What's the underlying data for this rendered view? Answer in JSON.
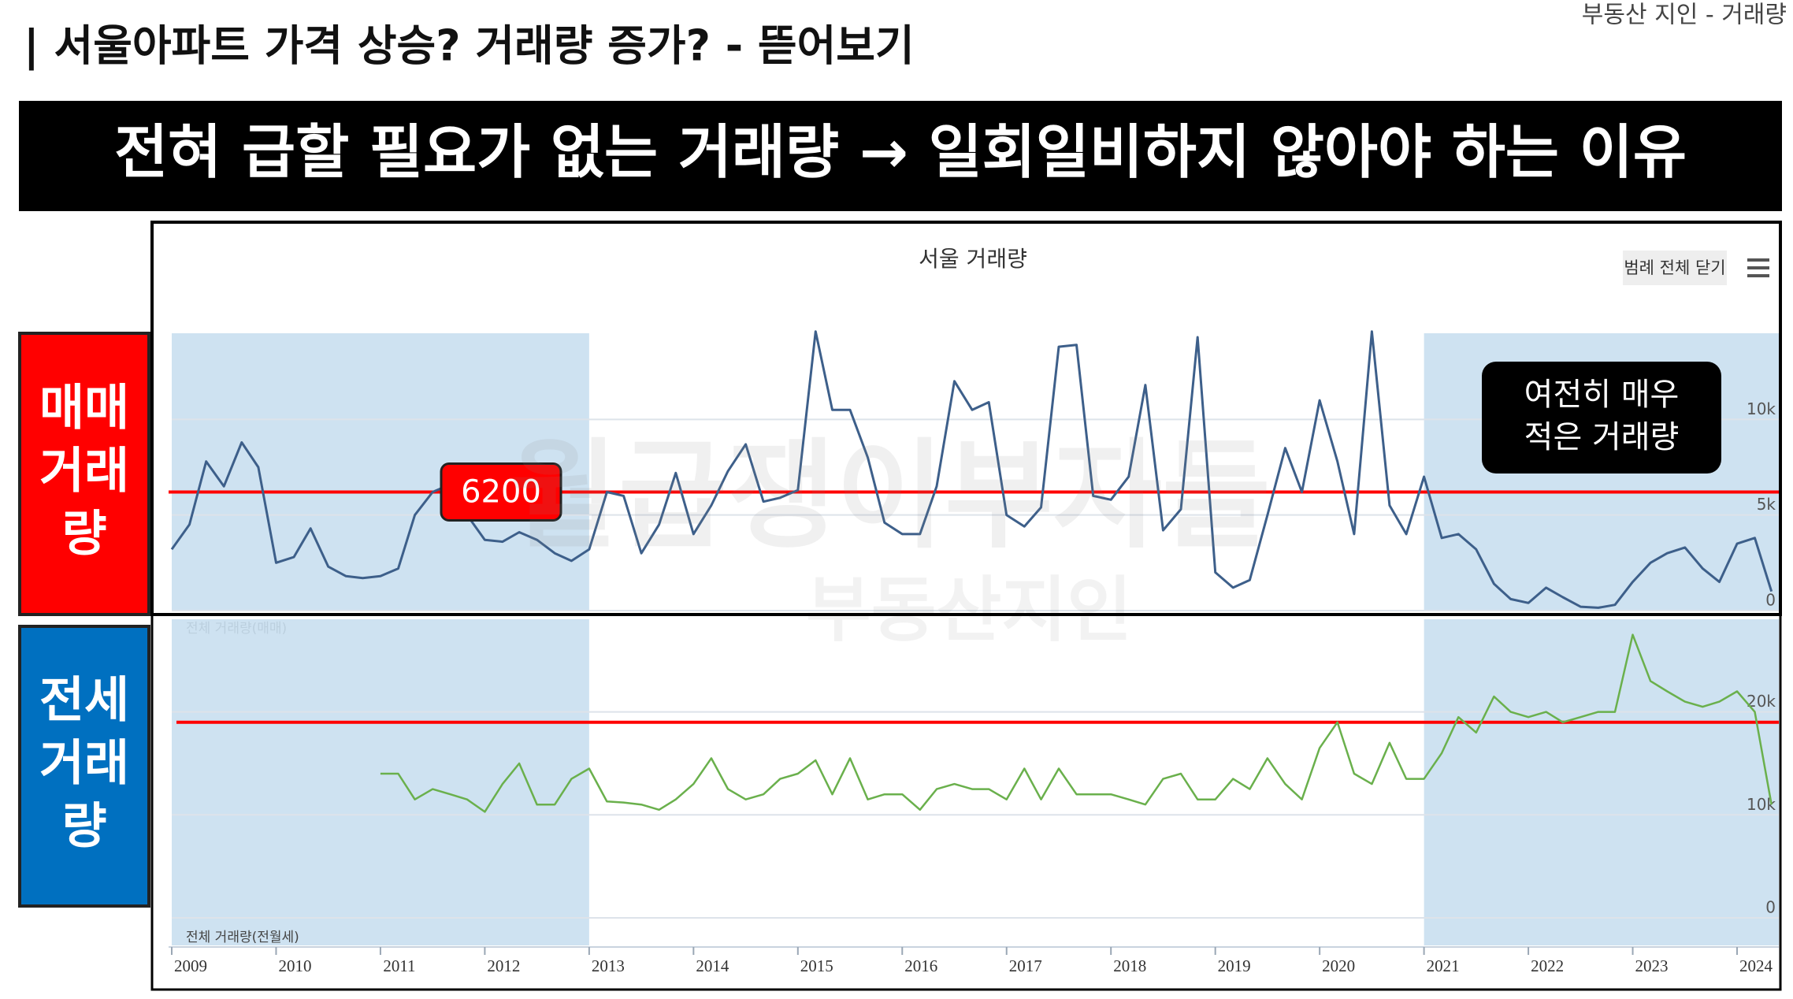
{
  "header": {
    "title": "| 서울아파트 가격 상승? 거래량 증가? - 뜯어보기",
    "source": "부동산 지인 - 거래량"
  },
  "banner": "전혀 급할 필요가 없는 거래량 → 일회일비하지 않아야 하는 이유",
  "side_labels": [
    [
      "매매",
      "거래",
      "량"
    ],
    [
      "전세",
      "거래",
      "량"
    ]
  ],
  "watermark": [
    "월급쟁이부자들",
    "부동산지인"
  ],
  "toolbar": {
    "legend_button": "범례 전체 닫기"
  },
  "chart_data": [
    {
      "type": "line",
      "title": "서울 거래량",
      "xlim": [
        2009,
        2024.4
      ],
      "ylim": [
        0,
        15000
      ],
      "yticks": [
        0,
        {
          "value": 5000,
          "label": "5k"
        },
        {
          "value": 10000,
          "label": "10k"
        }
      ],
      "shaded_ranges": [
        [
          2009,
          2013
        ],
        [
          2021,
          2024.4
        ]
      ],
      "reference_line": {
        "value": 6200,
        "label": "6200",
        "color": "#ff0000"
      },
      "annotation": [
        "여전히 매우",
        "적은 거래량"
      ],
      "x": [
        2009,
        2009.17,
        2009.33,
        2009.5,
        2009.67,
        2009.83,
        2010,
        2010.17,
        2010.33,
        2010.5,
        2010.67,
        2010.83,
        2011,
        2011.17,
        2011.33,
        2011.5,
        2011.67,
        2011.83,
        2012,
        2012.17,
        2012.33,
        2012.5,
        2012.67,
        2012.83,
        2013,
        2013.17,
        2013.33,
        2013.5,
        2013.67,
        2013.83,
        2014,
        2014.17,
        2014.33,
        2014.5,
        2014.67,
        2014.83,
        2015,
        2015.17,
        2015.33,
        2015.5,
        2015.67,
        2015.83,
        2016,
        2016.17,
        2016.33,
        2016.5,
        2016.67,
        2016.83,
        2017,
        2017.17,
        2017.33,
        2017.5,
        2017.67,
        2017.83,
        2018,
        2018.17,
        2018.33,
        2018.5,
        2018.67,
        2018.83,
        2019,
        2019.17,
        2019.33,
        2019.5,
        2019.67,
        2019.83,
        2020,
        2020.17,
        2020.33,
        2020.5,
        2020.67,
        2020.83,
        2021,
        2021.17,
        2021.33,
        2021.5,
        2021.67,
        2021.83,
        2022,
        2022.17,
        2022.33,
        2022.5,
        2022.67,
        2022.83,
        2023,
        2023.17,
        2023.33,
        2023.5,
        2023.67,
        2023.83,
        2024,
        2024.17,
        2024.33
      ],
      "series": [
        {
          "name": "전체 거래량(매매)",
          "color": "#3d5f8a",
          "values": [
            3200,
            4500,
            7800,
            6500,
            8800,
            7500,
            2500,
            2800,
            4300,
            2300,
            1800,
            1700,
            1800,
            2200,
            5000,
            6200,
            6600,
            5000,
            3700,
            3600,
            4100,
            3700,
            3000,
            2600,
            3200,
            6200,
            6000,
            3000,
            4500,
            7200,
            4000,
            5500,
            7300,
            8700,
            5700,
            5900,
            6300,
            14600,
            10500,
            10500,
            8000,
            4600,
            4000,
            4000,
            6500,
            12000,
            10500,
            10900,
            5000,
            4400,
            5400,
            13800,
            13900,
            6000,
            5800,
            7000,
            11800,
            4200,
            5300,
            14300,
            2000,
            1200,
            1600,
            5000,
            8500,
            6200,
            11000,
            7800,
            4000,
            14600,
            5500,
            4000,
            7000,
            3800,
            4000,
            3200,
            1400,
            600,
            400,
            1200,
            700,
            200,
            150,
            300,
            1500,
            2500,
            3000,
            3300,
            2200,
            1500,
            3500,
            3800,
            1000
          ]
        }
      ]
    },
    {
      "type": "line",
      "xlim": [
        2009,
        2024.4
      ],
      "ylim": [
        0,
        29000
      ],
      "xticks": [
        2009,
        2010,
        2011,
        2012,
        2013,
        2014,
        2015,
        2016,
        2017,
        2018,
        2019,
        2020,
        2021,
        2022,
        2023,
        2024
      ],
      "yticks": [
        0,
        {
          "value": 10000,
          "label": "10k"
        },
        {
          "value": 20000,
          "label": "20k"
        }
      ],
      "shaded_ranges": [
        [
          2009,
          2013
        ],
        [
          2021,
          2024.4
        ]
      ],
      "reference_line": {
        "value": 19000,
        "color": "#ff0000"
      },
      "x": [
        2011,
        2011.17,
        2011.33,
        2011.5,
        2011.67,
        2011.83,
        2012,
        2012.17,
        2012.33,
        2012.5,
        2012.67,
        2012.83,
        2013,
        2013.17,
        2013.33,
        2013.5,
        2013.67,
        2013.83,
        2014,
        2014.17,
        2014.33,
        2014.5,
        2014.67,
        2014.83,
        2015,
        2015.17,
        2015.33,
        2015.5,
        2015.67,
        2015.83,
        2016,
        2016.17,
        2016.33,
        2016.5,
        2016.67,
        2016.83,
        2017,
        2017.17,
        2017.33,
        2017.5,
        2017.67,
        2017.83,
        2018,
        2018.17,
        2018.33,
        2018.5,
        2018.67,
        2018.83,
        2019,
        2019.17,
        2019.33,
        2019.5,
        2019.67,
        2019.83,
        2020,
        2020.17,
        2020.33,
        2020.5,
        2020.67,
        2020.83,
        2021,
        2021.17,
        2021.33,
        2021.5,
        2021.67,
        2021.83,
        2022,
        2022.17,
        2022.33,
        2022.5,
        2022.67,
        2022.83,
        2023,
        2023.17,
        2023.33,
        2023.5,
        2023.67,
        2023.83,
        2024,
        2024.17,
        2024.33
      ],
      "series": [
        {
          "name": "전체 거래량(전월세)",
          "color": "#6ab04c",
          "values": [
            14000,
            14000,
            11500,
            12500,
            12000,
            11500,
            10300,
            13000,
            15000,
            11000,
            11000,
            13500,
            14500,
            11300,
            11200,
            11000,
            10500,
            11500,
            13000,
            15500,
            12500,
            11500,
            12000,
            13500,
            14000,
            15300,
            12000,
            15500,
            11500,
            12000,
            12000,
            10500,
            12500,
            13000,
            12500,
            12500,
            11500,
            14500,
            11500,
            14500,
            12000,
            12000,
            12000,
            11500,
            11000,
            13500,
            14000,
            11500,
            11500,
            13500,
            12500,
            15500,
            13000,
            11500,
            16500,
            19000,
            14000,
            13000,
            17000,
            13500,
            13500,
            16000,
            19500,
            18000,
            21500,
            20000,
            19500,
            20000,
            19000,
            19500,
            20000,
            20000,
            27500,
            23000,
            22000,
            21000,
            20500,
            21000,
            22000,
            20000,
            11000
          ]
        }
      ]
    }
  ]
}
